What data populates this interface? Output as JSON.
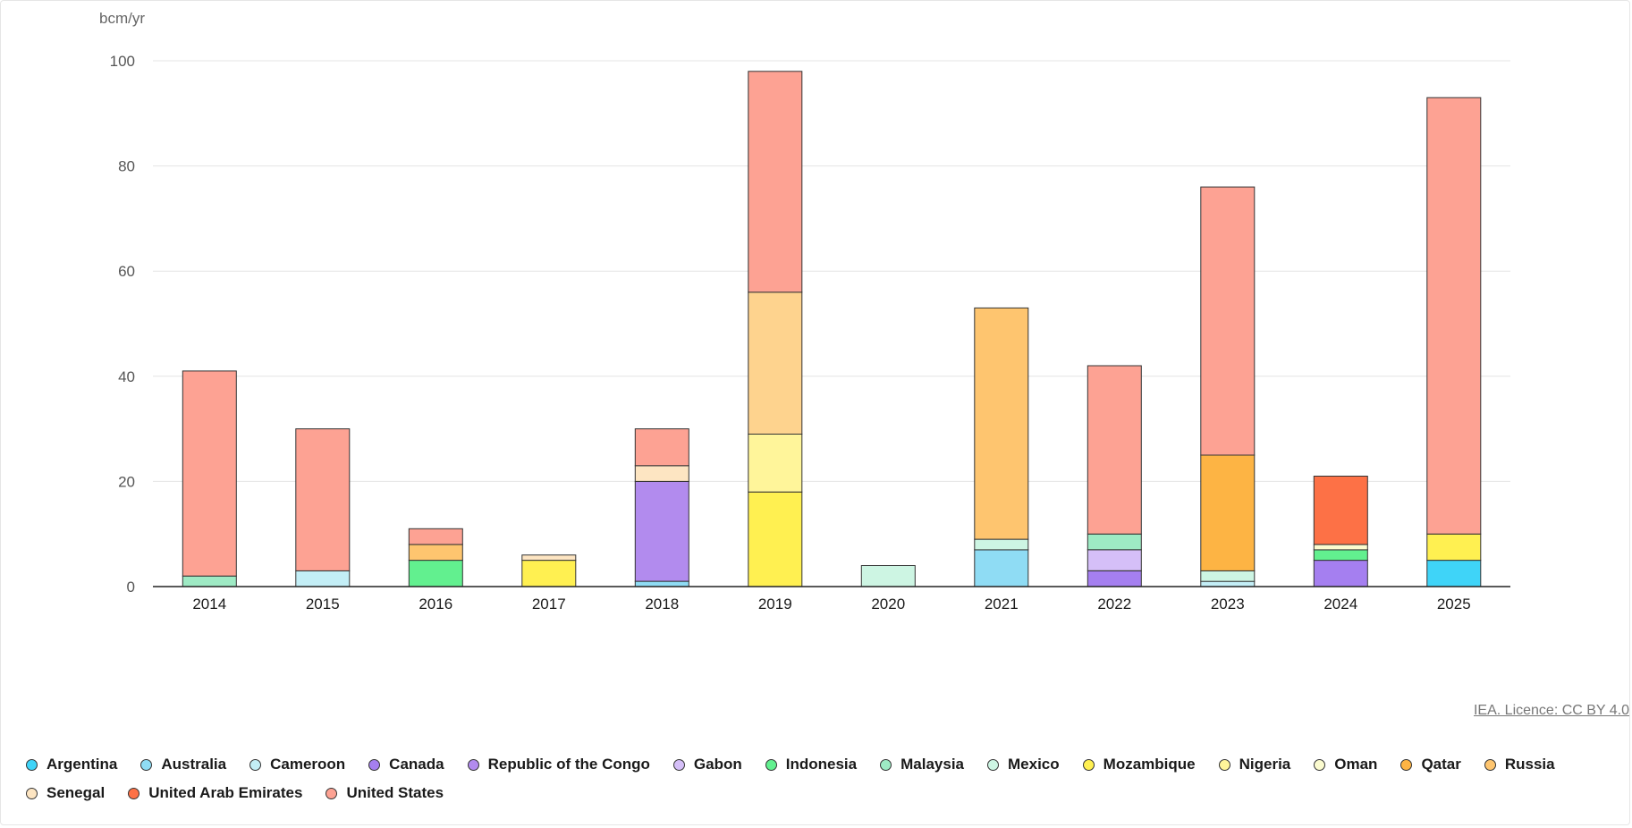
{
  "licence": {
    "text": "IEA. Licence: CC BY 4.0"
  },
  "legend_colors": {
    "Argentina": "#3fd4f8",
    "Australia": "#8fdcf4",
    "Cameroon": "#c3eef6",
    "Canada": "#a57ff0",
    "Republic of the Congo": "#b28bee",
    "Gabon": "#d5bff8",
    "Indonesia": "#62f08f",
    "Malaysia": "#9eeac4",
    "Mexico": "#cdf5e3",
    "Mozambique": "#fff051",
    "Nigeria": "#fff59a",
    "Oman": "#fbfbcf",
    "Qatar": "#fdb444",
    "Russia": "#fec56f",
    "Senegal": "#fde5c2",
    "United Arab Emirates": "#fd7146",
    "United States": "#fda293"
  },
  "legend_colors_extra": {
    "Russia_2019": "#fed38e"
  },
  "chart_data": {
    "type": "bar",
    "stacked": true,
    "title": "",
    "xlabel": "",
    "ylabel": "bcm/yr",
    "ylim": [
      0,
      100
    ],
    "yticks": [
      0,
      20,
      40,
      60,
      80,
      100
    ],
    "grid": true,
    "legend_position": "bottom",
    "categories": [
      "2014",
      "2015",
      "2016",
      "2017",
      "2018",
      "2019",
      "2020",
      "2021",
      "2022",
      "2023",
      "2024",
      "2025"
    ],
    "series": [
      {
        "name": "Argentina",
        "values": [
          0,
          0,
          0,
          0,
          0,
          0,
          0,
          0,
          0,
          0,
          0,
          5
        ]
      },
      {
        "name": "Australia",
        "values": [
          0,
          0,
          0,
          0,
          1,
          0,
          0,
          7,
          0,
          0,
          0,
          0
        ]
      },
      {
        "name": "Cameroon",
        "values": [
          0,
          3,
          0,
          0,
          0,
          0,
          0,
          0,
          0,
          1,
          0,
          0
        ]
      },
      {
        "name": "Canada",
        "values": [
          0,
          0,
          0,
          0,
          0,
          0,
          0,
          0,
          3,
          0,
          5,
          0
        ]
      },
      {
        "name": "Republic of the Congo",
        "values": [
          0,
          0,
          0,
          0,
          19,
          0,
          0,
          0,
          0,
          0,
          0,
          0
        ]
      },
      {
        "name": "Gabon",
        "values": [
          0,
          0,
          0,
          0,
          0,
          0,
          0,
          0,
          4,
          0,
          0,
          0
        ]
      },
      {
        "name": "Indonesia",
        "values": [
          0,
          0,
          5,
          0,
          0,
          0,
          0,
          0,
          0,
          0,
          2,
          0
        ]
      },
      {
        "name": "Malaysia",
        "values": [
          2,
          0,
          0,
          0,
          0,
          0,
          0,
          0,
          3,
          0,
          0,
          0
        ]
      },
      {
        "name": "Mexico",
        "values": [
          0,
          0,
          0,
          0,
          0,
          0,
          4,
          2,
          0,
          2,
          0,
          0
        ]
      },
      {
        "name": "Mozambique",
        "values": [
          0,
          0,
          0,
          5,
          0,
          18,
          0,
          0,
          0,
          0,
          0,
          5
        ]
      },
      {
        "name": "Nigeria",
        "values": [
          0,
          0,
          0,
          0,
          0,
          11,
          0,
          0,
          0,
          0,
          0,
          0
        ]
      },
      {
        "name": "Oman",
        "values": [
          0,
          0,
          0,
          0,
          0,
          0,
          0,
          0,
          0,
          0,
          1,
          0
        ]
      },
      {
        "name": "Qatar",
        "values": [
          0,
          0,
          0,
          0,
          0,
          0,
          0,
          0,
          0,
          22,
          0,
          0
        ]
      },
      {
        "name": "Russia",
        "values": [
          0,
          0,
          3,
          0,
          0,
          27,
          0,
          44,
          0,
          0,
          0,
          0
        ]
      },
      {
        "name": "Senegal",
        "values": [
          0,
          0,
          0,
          1,
          3,
          0,
          0,
          0,
          0,
          0,
          0,
          0
        ]
      },
      {
        "name": "United Arab Emirates",
        "values": [
          0,
          0,
          0,
          0,
          0,
          0,
          0,
          0,
          0,
          0,
          13,
          0
        ]
      },
      {
        "name": "United States",
        "values": [
          39,
          27,
          3,
          0,
          7,
          42,
          0,
          0,
          32,
          51,
          0,
          83
        ]
      }
    ]
  }
}
